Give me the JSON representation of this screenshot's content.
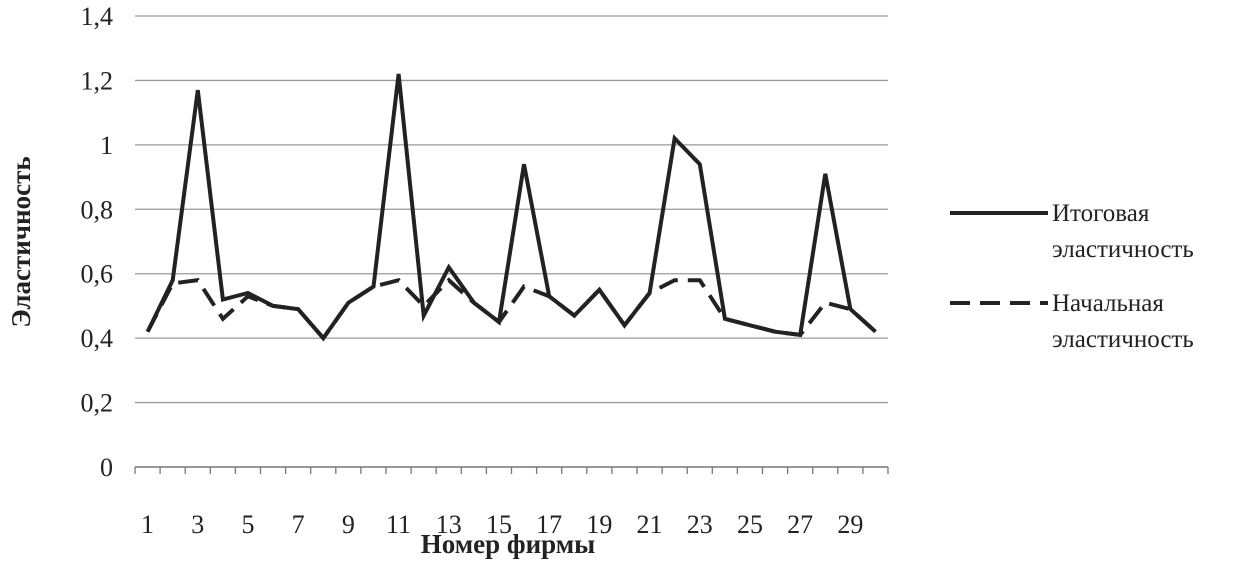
{
  "chart_data": {
    "type": "line",
    "xlabel": "Номер фирмы",
    "ylabel": "Эластичность",
    "ylim": [
      0,
      1.4
    ],
    "yticks": [
      "0",
      "0,2",
      "0,4",
      "0,6",
      "0,8",
      "1",
      "1,2",
      "1,4"
    ],
    "x": [
      1,
      2,
      3,
      4,
      5,
      6,
      7,
      8,
      9,
      10,
      11,
      12,
      13,
      14,
      15,
      16,
      17,
      18,
      19,
      20,
      21,
      22,
      23,
      24,
      25,
      26,
      27,
      28,
      29,
      30
    ],
    "xtick_labels": [
      "1",
      "3",
      "5",
      "7",
      "9",
      "11",
      "13",
      "15",
      "17",
      "19",
      "21",
      "23",
      "25",
      "27",
      "29"
    ],
    "grid": true,
    "legend_position": "right",
    "series": [
      {
        "name": "Итоговая эластичность",
        "style": "solid",
        "values": [
          0.42,
          0.58,
          1.17,
          0.52,
          0.54,
          0.5,
          0.49,
          0.4,
          0.51,
          0.56,
          1.22,
          0.47,
          0.62,
          0.51,
          0.45,
          0.94,
          0.53,
          0.47,
          0.55,
          0.44,
          0.54,
          1.02,
          0.94,
          0.46,
          0.44,
          0.42,
          0.41,
          0.91,
          0.49,
          0.42
        ]
      },
      {
        "name": "Начальная эластичность",
        "style": "dashed",
        "values": [
          0.42,
          0.57,
          0.58,
          0.46,
          0.53,
          0.5,
          0.49,
          0.4,
          0.51,
          0.56,
          0.58,
          0.5,
          0.58,
          0.51,
          0.45,
          0.56,
          0.53,
          0.47,
          0.55,
          0.44,
          0.54,
          0.58,
          0.58,
          0.46,
          0.44,
          0.42,
          0.41,
          0.51,
          0.49,
          0.42
        ]
      }
    ]
  },
  "colors": {
    "line": "#222222",
    "grid": "#9a9a9a"
  }
}
